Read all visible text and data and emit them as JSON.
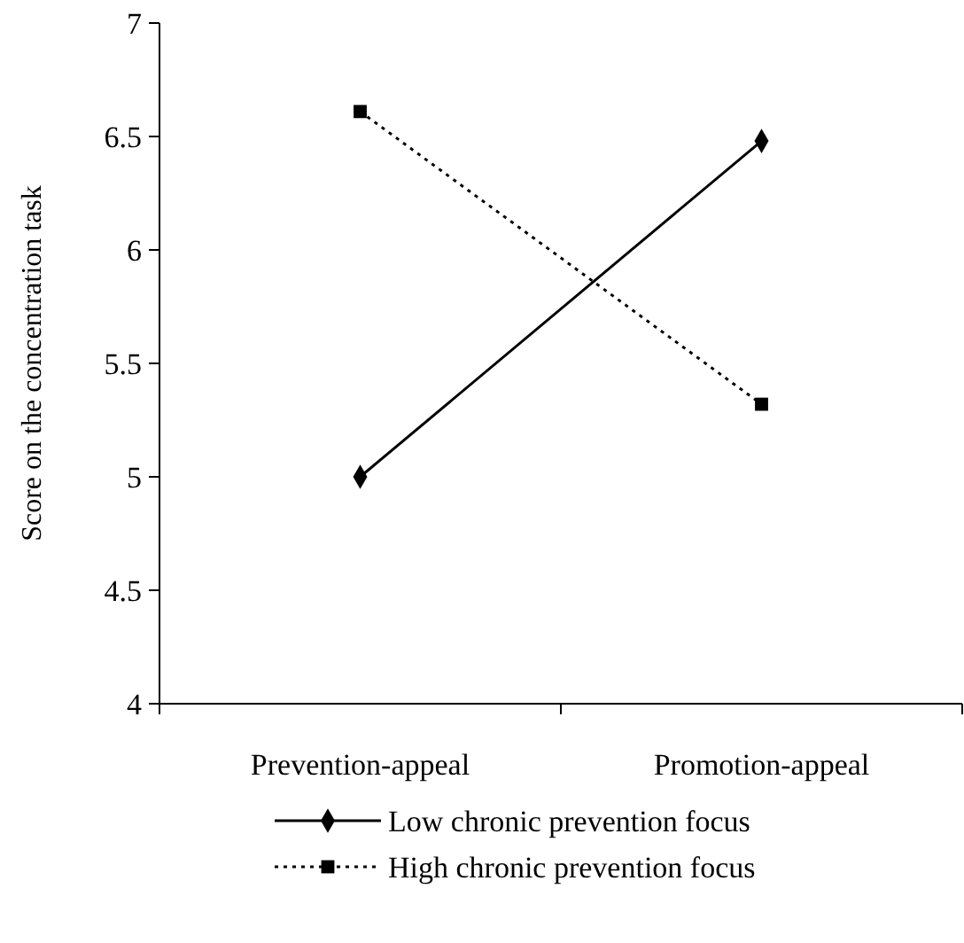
{
  "chart_data": {
    "type": "line",
    "ylabel": "Score on the concentration task",
    "categories": [
      "Prevention-appeal",
      "Promotion-appeal"
    ],
    "series": [
      {
        "name": "Low chronic prevention focus",
        "color": "#000000",
        "values": [
          5.0,
          6.48
        ],
        "marker": "diamond",
        "line_style": "solid"
      },
      {
        "name": "High chronic prevention focus",
        "color": "#000000",
        "values": [
          6.61,
          5.32
        ],
        "marker": "square",
        "line_style": "dotted"
      }
    ],
    "ylim": [
      4,
      7
    ],
    "yticks": [
      4,
      4.5,
      5,
      5.5,
      6,
      6.5,
      7
    ],
    "grid": false,
    "legend": "bottom"
  }
}
